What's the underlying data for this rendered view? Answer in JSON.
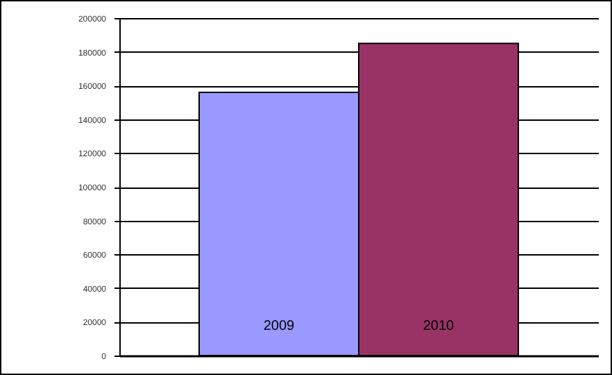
{
  "chart_data": {
    "type": "bar",
    "categories": [
      "2009",
      "2010"
    ],
    "colors": [
      "#9999ff",
      "#993366"
    ],
    "values": [
      156000,
      185000
    ],
    "ylim": [
      0,
      200000
    ],
    "yticks": [
      0,
      20000,
      40000,
      60000,
      80000,
      100000,
      120000,
      140000,
      160000,
      180000,
      200000
    ],
    "grid": "y"
  }
}
